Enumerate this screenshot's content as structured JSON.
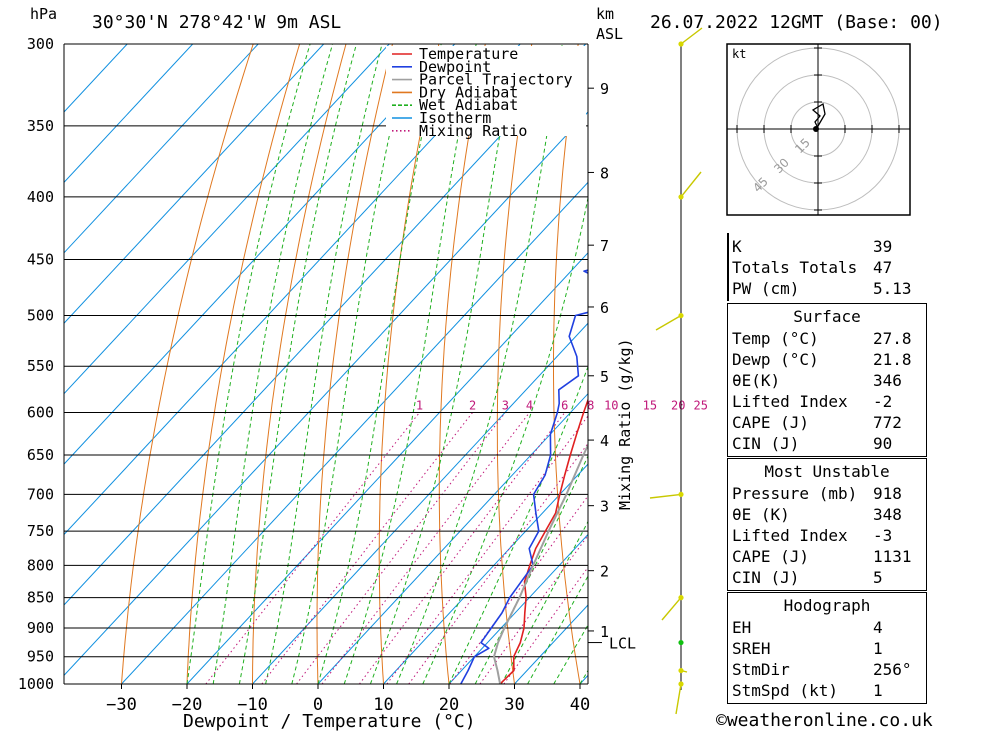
{
  "header": {
    "hpa_label": "hPa",
    "location": "30°30'N  278°42'W  9m  ASL",
    "km_label": "km",
    "asl_label": "ASL",
    "datetime": "26.07.2022  12GMT  (Base: 00)"
  },
  "legend": [
    {
      "label": "Temperature",
      "color": "#e02020"
    },
    {
      "label": "Dewpoint",
      "color": "#2040e0"
    },
    {
      "label": "Parcel Trajectory",
      "color": "#a0a0a0"
    },
    {
      "label": "Dry Adiabat",
      "color": "#e07820"
    },
    {
      "label": "Wet Adiabat",
      "color": "#20b020"
    },
    {
      "label": "Isotherm",
      "color": "#1090e0"
    },
    {
      "label": "Mixing Ratio",
      "color": "#c0187a"
    }
  ],
  "chart_data": {
    "type": "line",
    "xlabel": "Dewpoint / Temperature (°C)",
    "ylabel": "hPa",
    "right_axis_label": "Mixing Ratio (g/kg)",
    "xlim": [
      -40,
      40
    ],
    "ylim": [
      1000,
      300
    ],
    "x_ticks": [
      -30,
      -20,
      -10,
      0,
      10,
      20,
      30,
      40
    ],
    "pressure_levels": [
      300,
      350,
      400,
      450,
      500,
      550,
      600,
      650,
      700,
      750,
      800,
      850,
      900,
      950,
      1000
    ],
    "km_ticks": [
      {
        "label": "9",
        "p": 326
      },
      {
        "label": "8",
        "p": 382
      },
      {
        "label": "7",
        "p": 438
      },
      {
        "label": "6",
        "p": 492
      },
      {
        "label": "5",
        "p": 560
      },
      {
        "label": "4",
        "p": 632
      },
      {
        "label": "3",
        "p": 715
      },
      {
        "label": "2",
        "p": 808
      },
      {
        "label": "1",
        "p": 905
      }
    ],
    "lcl": {
      "label": "LCL",
      "p": 925
    },
    "mixing_ratio_labels": [
      "1",
      "2",
      "3",
      "4",
      "6",
      "8",
      "10",
      "15",
      "20",
      "25"
    ],
    "mixing_ratio_values": [
      1,
      2,
      3,
      4,
      6,
      8,
      10,
      15,
      20,
      25
    ],
    "series": [
      {
        "name": "Temperature",
        "points": [
          [
            1000,
            27.8
          ],
          [
            975,
            28
          ],
          [
            950,
            26
          ],
          [
            925,
            25
          ],
          [
            900,
            23.5
          ],
          [
            875,
            21.5
          ],
          [
            850,
            19.5
          ],
          [
            825,
            17
          ],
          [
            800,
            15.5
          ],
          [
            775,
            14
          ],
          [
            750,
            13
          ],
          [
            725,
            12
          ],
          [
            700,
            10
          ],
          [
            675,
            8
          ],
          [
            650,
            6
          ],
          [
            625,
            4
          ],
          [
            600,
            2
          ],
          [
            575,
            0
          ],
          [
            550,
            -2
          ],
          [
            525,
            -4
          ],
          [
            500,
            -6
          ],
          [
            480,
            -9
          ],
          [
            450,
            -12
          ],
          [
            420,
            -15
          ],
          [
            400,
            -18
          ],
          [
            380,
            -21
          ],
          [
            360,
            -25
          ],
          [
            340,
            -28
          ],
          [
            320,
            -31
          ],
          [
            300,
            -35
          ]
        ]
      },
      {
        "name": "Dewpoint",
        "points": [
          [
            1000,
            21.8
          ],
          [
            975,
            21
          ],
          [
            950,
            20
          ],
          [
            935,
            21
          ],
          [
            925,
            19
          ],
          [
            900,
            18.5
          ],
          [
            875,
            18
          ],
          [
            850,
            17
          ],
          [
            825,
            16.5
          ],
          [
            800,
            16
          ],
          [
            775,
            13
          ],
          [
            750,
            12
          ],
          [
            725,
            9
          ],
          [
            700,
            6
          ],
          [
            675,
            5
          ],
          [
            650,
            3
          ],
          [
            625,
            0
          ],
          [
            600,
            -2
          ],
          [
            590,
            -3
          ],
          [
            575,
            -5
          ],
          [
            560,
            -4
          ],
          [
            540,
            -7
          ],
          [
            520,
            -11
          ],
          [
            500,
            -13
          ],
          [
            490,
            -8
          ],
          [
            475,
            -10
          ],
          [
            460,
            -18
          ],
          [
            450,
            -13
          ],
          [
            430,
            -17
          ],
          [
            410,
            -20
          ],
          [
            400,
            -24
          ],
          [
            390,
            -19
          ],
          [
            375,
            -25
          ],
          [
            360,
            -18
          ],
          [
            350,
            -35
          ],
          [
            345,
            -28
          ],
          [
            340,
            -38
          ],
          [
            320,
            -40
          ]
        ]
      },
      {
        "name": "Parcel Trajectory",
        "points": [
          [
            1000,
            27.8
          ],
          [
            975,
            25.5
          ],
          [
            950,
            23
          ],
          [
            925,
            21.6
          ],
          [
            900,
            20.5
          ],
          [
            850,
            18.5
          ],
          [
            800,
            16
          ],
          [
            750,
            13.5
          ],
          [
            700,
            11
          ],
          [
            650,
            8
          ],
          [
            600,
            5
          ],
          [
            550,
            1.5
          ],
          [
            500,
            -2.5
          ],
          [
            450,
            -7.5
          ],
          [
            400,
            -13.5
          ],
          [
            350,
            -21
          ],
          [
            300,
            -31
          ]
        ]
      }
    ]
  },
  "hodograph": {
    "unit_label": "kt",
    "ring_labels": [
      "15",
      "30",
      "45"
    ]
  },
  "indices": {
    "top": [
      {
        "key": "K",
        "value": "39"
      },
      {
        "key": "Totals Totals",
        "value": "47"
      },
      {
        "key": "PW (cm)",
        "value": "5.13"
      }
    ],
    "surface_title": "Surface",
    "surface": [
      {
        "key": "Temp (°C)",
        "value": "27.8"
      },
      {
        "key": "Dewp (°C)",
        "value": "21.8"
      },
      {
        "key": "θE(K)",
        "value": "346"
      },
      {
        "key": "Lifted Index",
        "value": "-2"
      },
      {
        "key": "CAPE (J)",
        "value": "772"
      },
      {
        "key": "CIN (J)",
        "value": "90"
      }
    ],
    "mu_title": "Most Unstable",
    "most_unstable": [
      {
        "key": "Pressure (mb)",
        "value": "918"
      },
      {
        "key": "θE (K)",
        "value": "348"
      },
      {
        "key": "Lifted Index",
        "value": "-3"
      },
      {
        "key": "CAPE (J)",
        "value": "1131"
      },
      {
        "key": "CIN (J)",
        "value": "5"
      }
    ],
    "hodo_title": "Hodograph",
    "hodograph": [
      {
        "key": "EH",
        "value": "4"
      },
      {
        "key": "SREH",
        "value": "1"
      },
      {
        "key": "StmDir",
        "value": "256°"
      },
      {
        "key": "StmSpd (kt)",
        "value": "1"
      }
    ]
  },
  "credit": "©weatheronline.co.uk"
}
